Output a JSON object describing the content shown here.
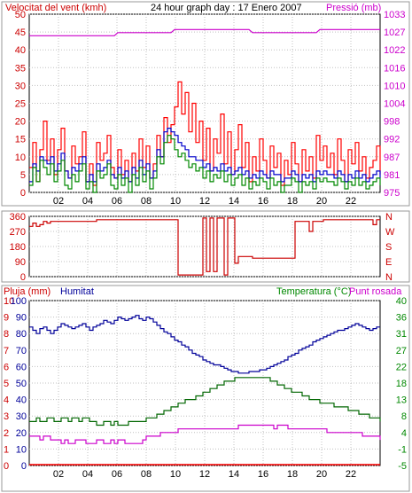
{
  "chart_data": [
    {
      "type": "line",
      "title": "24 hour graph day : 17 Enero 2007",
      "left_axis_label": "Velocitat del vent (kmh)",
      "right_axis_label": "Pressió (mb)",
      "x_ticks": [
        "02",
        "04",
        "06",
        "08",
        "10",
        "12",
        "14",
        "16",
        "18",
        "20",
        "22"
      ],
      "y_left_ticks": [
        0,
        5,
        10,
        15,
        20,
        25,
        30,
        35,
        40,
        45,
        50
      ],
      "y_left_range": [
        0,
        50
      ],
      "y_right_ticks": [
        975,
        981,
        987,
        992,
        998,
        1004,
        1010,
        1016,
        1022,
        1027,
        1033
      ],
      "y_right_range": [
        975,
        1033
      ],
      "series": [
        {
          "name": "gust",
          "color": "#ff0000",
          "axis": "left",
          "values": [
            7,
            14,
            3,
            12,
            20,
            9,
            15,
            5,
            12,
            18,
            6,
            4,
            13,
            8,
            10,
            17,
            3,
            8,
            2,
            14,
            9,
            11,
            16,
            7,
            4,
            12,
            5,
            9,
            3,
            11,
            6,
            15,
            7,
            13,
            4,
            8,
            16,
            10,
            21,
            14,
            19,
            24,
            31,
            22,
            28,
            17,
            25,
            14,
            20,
            9,
            18,
            6,
            15,
            11,
            22,
            8,
            17,
            5,
            12,
            19,
            7,
            14,
            3,
            10,
            6,
            15,
            9,
            4,
            13,
            7,
            11,
            2,
            9,
            5,
            14,
            8,
            3,
            12,
            6,
            10,
            4,
            16,
            9,
            13,
            7,
            11,
            5,
            15,
            9,
            3,
            12,
            8,
            14,
            6,
            10,
            4,
            7,
            9,
            13,
            5
          ]
        },
        {
          "name": "wind",
          "color": "#0000cc",
          "axis": "left",
          "values": [
            3,
            8,
            6,
            10,
            9,
            8,
            10,
            6,
            8,
            11,
            6,
            4,
            7,
            6,
            8,
            10,
            3,
            5,
            3,
            8,
            6,
            7,
            9,
            5,
            4,
            7,
            4,
            6,
            3,
            7,
            4,
            9,
            5,
            8,
            4,
            6,
            12,
            10,
            17,
            18,
            17,
            16,
            14,
            13,
            12,
            10,
            10,
            9,
            9,
            7,
            8,
            6,
            7,
            6,
            8,
            6,
            7,
            5,
            6,
            7,
            5,
            6,
            4,
            5,
            4,
            6,
            5,
            4,
            6,
            5,
            5,
            3,
            4,
            4,
            6,
            5,
            3,
            5,
            4,
            5,
            3,
            6,
            5,
            6,
            5,
            5,
            4,
            6,
            5,
            3,
            5,
            4,
            6,
            4,
            5,
            3,
            4,
            5,
            6,
            4
          ]
        },
        {
          "name": "average",
          "color": "#008800",
          "axis": "left",
          "values": [
            2,
            7,
            3,
            9,
            7,
            5,
            8,
            3,
            6,
            9,
            2,
            1,
            5,
            3,
            6,
            8,
            1,
            3,
            0,
            6,
            4,
            5,
            8,
            2,
            1,
            5,
            2,
            4,
            0,
            5,
            2,
            7,
            3,
            6,
            1,
            4,
            10,
            8,
            14,
            16,
            15,
            12,
            10,
            11,
            9,
            7,
            8,
            6,
            7,
            4,
            6,
            3,
            5,
            4,
            6,
            3,
            5,
            2,
            4,
            5,
            2,
            4,
            1,
            3,
            2,
            4,
            3,
            1,
            4,
            2,
            3,
            0,
            2,
            2,
            4,
            3,
            0,
            3,
            2,
            3,
            1,
            4,
            3,
            4,
            3,
            3,
            2,
            4,
            3,
            1,
            3,
            2,
            4,
            2,
            3,
            1,
            2,
            3,
            4,
            2
          ]
        },
        {
          "name": "pressure",
          "color": "#cc00cc",
          "axis": "right",
          "values": [
            1026,
            1026,
            1026,
            1026,
            1026,
            1026,
            1026,
            1026,
            1026,
            1026,
            1026,
            1026,
            1026,
            1026,
            1026,
            1026,
            1026,
            1026,
            1026,
            1026,
            1026,
            1026,
            1026,
            1026,
            1026,
            1027,
            1027,
            1027,
            1027,
            1027,
            1027,
            1027,
            1027,
            1027,
            1027,
            1027,
            1027,
            1027,
            1027,
            1027,
            1027,
            1028,
            1028,
            1028,
            1028,
            1028,
            1028,
            1028,
            1028,
            1028,
            1028,
            1028,
            1028,
            1028,
            1028,
            1028,
            1028,
            1028,
            1028,
            1028,
            1028,
            1028,
            1028,
            1027,
            1027,
            1027,
            1027,
            1027,
            1027,
            1027,
            1027,
            1027,
            1027,
            1027,
            1027,
            1027,
            1027,
            1027,
            1027,
            1027,
            1027,
            1027,
            1028,
            1028,
            1028,
            1028,
            1028,
            1028,
            1028,
            1028,
            1028,
            1028,
            1028,
            1028,
            1028,
            1028,
            1028,
            1028,
            1028,
            1028
          ]
        }
      ]
    },
    {
      "type": "line",
      "y_left_ticks": [
        "360",
        "270",
        "180",
        "90",
        "0"
      ],
      "y_right_ticks": [
        "N",
        "W",
        "S",
        "E",
        "N"
      ],
      "y_range": [
        0,
        360
      ],
      "series": [
        {
          "name": "direction",
          "color": "#cc0000",
          "values": [
            300,
            320,
            300,
            310,
            330,
            320,
            330,
            330,
            330,
            330,
            330,
            330,
            330,
            330,
            330,
            330,
            330,
            330,
            330,
            340,
            340,
            340,
            340,
            340,
            340,
            340,
            340,
            340,
            340,
            340,
            340,
            340,
            340,
            340,
            340,
            340,
            340,
            340,
            340,
            340,
            340,
            340,
            10,
            10,
            10,
            10,
            10,
            10,
            10,
            350,
            30,
            350,
            30,
            350,
            350,
            10,
            350,
            350,
            80,
            120,
            120,
            120,
            120,
            110,
            110,
            110,
            110,
            110,
            110,
            110,
            110,
            110,
            110,
            110,
            110,
            330,
            330,
            330,
            330,
            270,
            330,
            330,
            330,
            340,
            340,
            340,
            340,
            340,
            340,
            340,
            340,
            340,
            340,
            340,
            340,
            340,
            340,
            310,
            340,
            340
          ]
        }
      ]
    },
    {
      "type": "line",
      "label_rain": "Pluja (mm)",
      "label_humidity": "Humitat",
      "label_temperature": "Temperatura (°C)",
      "label_dewpoint": "Punt rosada",
      "y_rain_ticks": [
        0,
        1,
        2,
        3,
        4,
        5,
        6,
        7,
        8,
        9,
        10
      ],
      "y_humidity_ticks": [
        0,
        10,
        20,
        30,
        40,
        50,
        60,
        70,
        80,
        90,
        100
      ],
      "y_temp_ticks": [
        -5,
        -1,
        4,
        8,
        13,
        18,
        22,
        27,
        31,
        36,
        40
      ],
      "humidity_range": [
        0,
        100
      ],
      "temp_range": [
        -5,
        40
      ],
      "series": [
        {
          "name": "humidity",
          "color": "#000099",
          "values": [
            84,
            82,
            80,
            83,
            84,
            82,
            80,
            82,
            84,
            86,
            85,
            84,
            83,
            84,
            85,
            86,
            84,
            82,
            84,
            85,
            86,
            88,
            87,
            86,
            88,
            90,
            89,
            88,
            89,
            90,
            91,
            89,
            88,
            90,
            89,
            87,
            85,
            83,
            81,
            80,
            78,
            76,
            75,
            73,
            72,
            70,
            68,
            67,
            66,
            64,
            63,
            62,
            61,
            61,
            60,
            59,
            58,
            57,
            57,
            56,
            56,
            56,
            57,
            57,
            57,
            58,
            58,
            59,
            60,
            61,
            62,
            63,
            64,
            66,
            67,
            68,
            70,
            71,
            72,
            73,
            75,
            76,
            77,
            78,
            79,
            80,
            81,
            82,
            82,
            83,
            84,
            85,
            86,
            85,
            84,
            83,
            82,
            83,
            84,
            84
          ]
        },
        {
          "name": "temperature",
          "color": "#006600",
          "values": [
            7,
            7,
            8,
            7,
            7,
            8,
            8,
            7,
            7,
            8,
            8,
            7,
            8,
            8,
            7,
            8,
            8,
            7,
            7,
            6,
            6,
            7,
            7,
            6,
            7,
            6,
            6,
            6,
            7,
            7,
            7,
            7,
            7,
            8,
            8,
            8,
            9,
            9,
            10,
            10,
            11,
            11,
            12,
            12,
            13,
            13,
            13,
            14,
            14,
            15,
            15,
            16,
            16,
            17,
            17,
            18,
            18,
            18,
            19,
            19,
            19,
            19,
            19,
            19,
            19,
            19,
            19,
            19,
            18,
            18,
            17,
            17,
            16,
            16,
            15,
            15,
            15,
            14,
            14,
            13,
            13,
            13,
            12,
            12,
            12,
            12,
            11,
            11,
            11,
            11,
            10,
            10,
            10,
            9,
            9,
            9,
            8,
            8,
            8,
            7
          ]
        },
        {
          "name": "dewpoint",
          "color": "#cc00cc",
          "values": [
            3,
            3,
            3,
            2,
            3,
            3,
            2,
            2,
            2,
            1,
            2,
            1,
            1,
            2,
            2,
            2,
            1,
            1,
            1,
            2,
            2,
            1,
            1,
            2,
            1,
            2,
            2,
            1,
            1,
            1,
            1,
            1,
            2,
            3,
            3,
            3,
            3,
            4,
            4,
            4,
            4,
            4,
            5,
            5,
            5,
            5,
            5,
            5,
            5,
            5,
            5,
            5,
            5,
            5,
            5,
            5,
            5,
            5,
            5,
            6,
            6,
            6,
            6,
            6,
            6,
            6,
            6,
            6,
            6,
            5,
            6,
            6,
            6,
            5,
            5,
            5,
            5,
            5,
            5,
            5,
            5,
            5,
            5,
            5,
            4,
            4,
            4,
            4,
            4,
            4,
            4,
            4,
            4,
            4,
            3,
            3,
            3,
            3,
            3,
            2
          ]
        },
        {
          "name": "rain",
          "color": "#ff0000",
          "values": [
            0,
            0,
            0,
            0,
            0,
            0,
            0,
            0,
            0,
            0,
            0,
            0,
            0,
            0,
            0,
            0,
            0,
            0,
            0,
            0,
            0,
            0,
            0,
            0,
            0,
            0,
            0,
            0,
            0,
            0,
            0,
            0,
            0,
            0,
            0,
            0,
            0,
            0,
            0,
            0,
            0,
            0,
            0,
            0,
            0,
            0,
            0,
            0,
            0,
            0,
            0,
            0,
            0,
            0,
            0,
            0,
            0,
            0,
            0,
            0,
            0,
            0,
            0,
            0,
            0,
            0,
            0,
            0,
            0,
            0,
            0,
            0,
            0,
            0,
            0,
            0,
            0,
            0,
            0,
            0,
            0,
            0,
            0,
            0,
            0,
            0,
            0,
            0,
            0,
            0,
            0,
            0,
            0,
            0,
            0,
            0,
            0,
            0,
            0,
            0
          ]
        }
      ]
    }
  ]
}
